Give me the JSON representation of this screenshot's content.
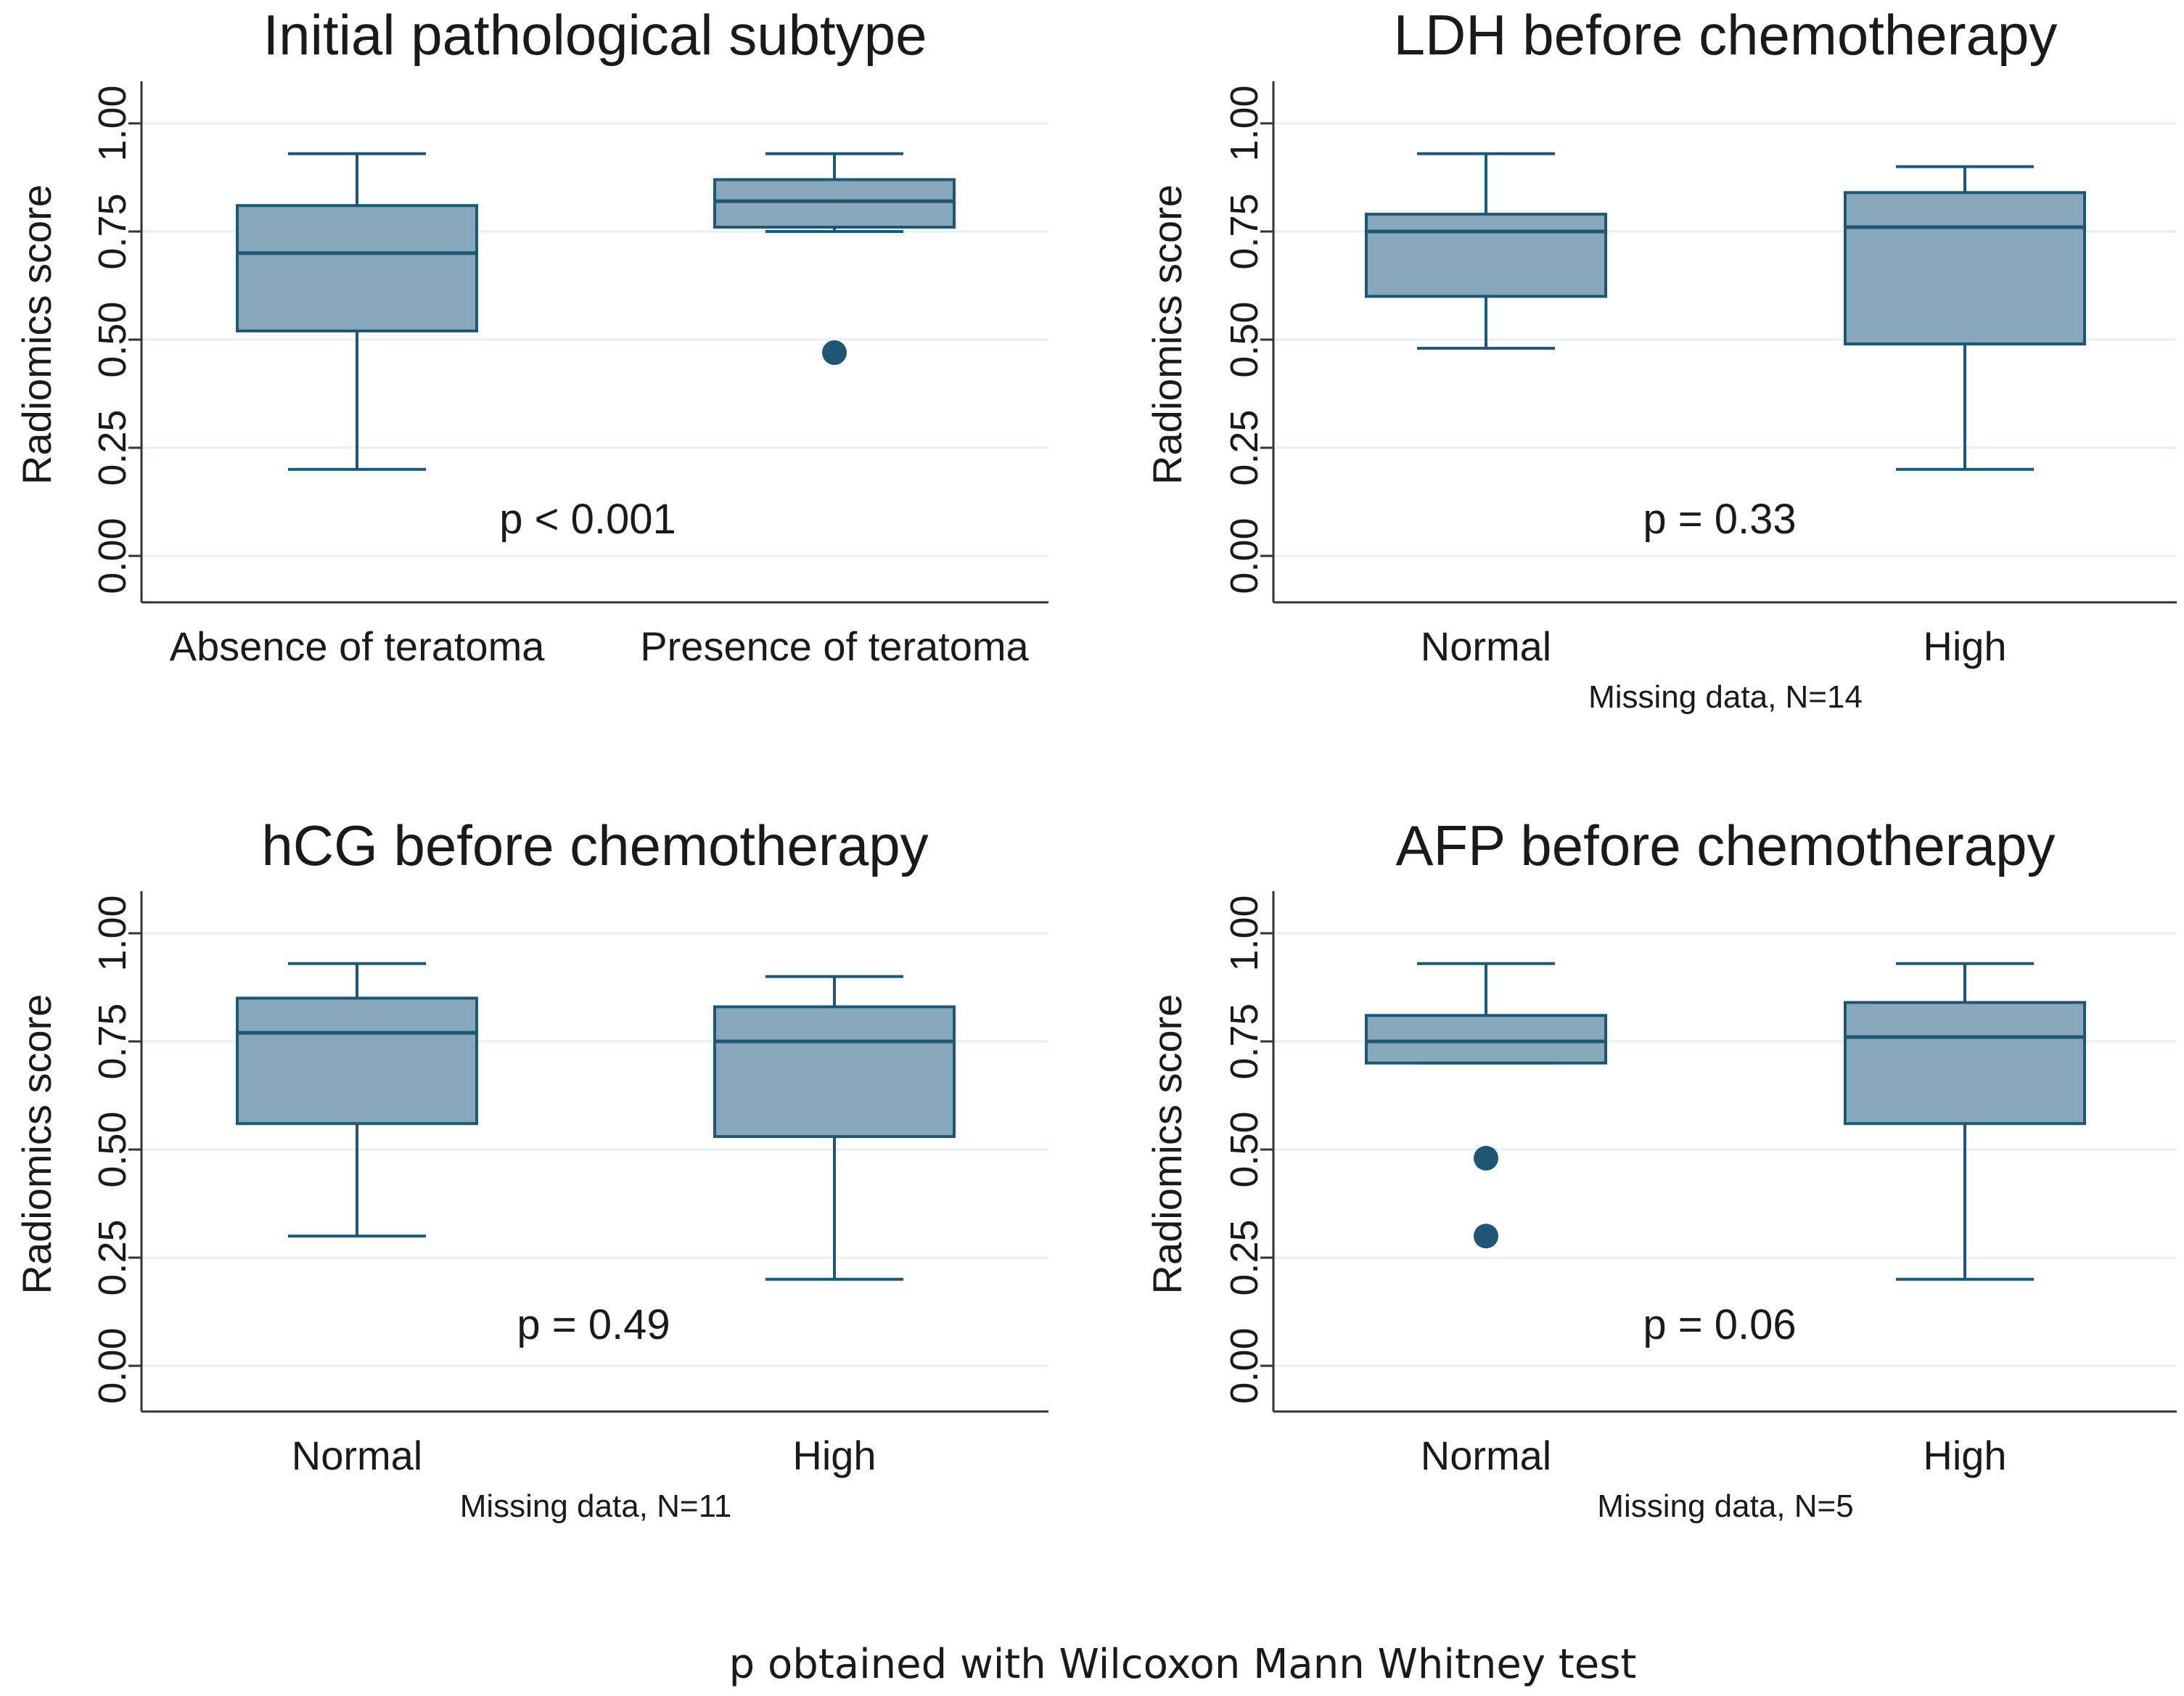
{
  "footer": "p obtained with Wilcoxon Mann Whitney test",
  "colors": {
    "box_fill": "#87A8BB",
    "line": "#1F5673",
    "grid": "#E6EFF2",
    "axis": "#333333"
  },
  "chart_data": [
    {
      "type": "box",
      "title": "Initial pathological subtype",
      "ylabel": "Radiomics score",
      "ylim": [
        0,
        1.05
      ],
      "yticks": [
        "0.00",
        "0.25",
        "0.50",
        "0.75",
        "1.00"
      ],
      "categories": [
        "Absence of teratoma",
        "Presence of teratoma"
      ],
      "boxes": [
        {
          "whisker_low": 0.2,
          "q1": 0.52,
          "median": 0.7,
          "q3": 0.81,
          "whisker_high": 0.93,
          "outliers": []
        },
        {
          "whisker_low": 0.75,
          "q1": 0.76,
          "median": 0.82,
          "q3": 0.87,
          "whisker_high": 0.93,
          "outliers": [
            0.47
          ]
        }
      ],
      "p_text": "p < 0.001",
      "note": ""
    },
    {
      "type": "box",
      "title": "LDH before chemotherapy",
      "ylabel": "Radiomics score",
      "ylim": [
        0,
        1.05
      ],
      "yticks": [
        "0.00",
        "0.25",
        "0.50",
        "0.75",
        "1.00"
      ],
      "categories": [
        "Normal",
        "High"
      ],
      "boxes": [
        {
          "whisker_low": 0.48,
          "q1": 0.6,
          "median": 0.75,
          "q3": 0.79,
          "whisker_high": 0.93,
          "outliers": []
        },
        {
          "whisker_low": 0.2,
          "q1": 0.49,
          "median": 0.76,
          "q3": 0.84,
          "whisker_high": 0.9,
          "outliers": []
        }
      ],
      "p_text": "p = 0.33",
      "note": "Missing data, N=14"
    },
    {
      "type": "box",
      "title": "hCG before chemotherapy",
      "ylabel": "Radiomics score",
      "ylim": [
        0,
        1.05
      ],
      "yticks": [
        "0.00",
        "0.25",
        "0.50",
        "0.75",
        "1.00"
      ],
      "categories": [
        "Normal",
        "High"
      ],
      "boxes": [
        {
          "whisker_low": 0.3,
          "q1": 0.56,
          "median": 0.77,
          "q3": 0.85,
          "whisker_high": 0.93,
          "outliers": []
        },
        {
          "whisker_low": 0.2,
          "q1": 0.53,
          "median": 0.75,
          "q3": 0.83,
          "whisker_high": 0.9,
          "outliers": []
        }
      ],
      "p_text": "p = 0.49",
      "note": "Missing data, N=11"
    },
    {
      "type": "box",
      "title": "AFP before chemotherapy",
      "ylabel": "Radiomics score",
      "ylim": [
        0,
        1.05
      ],
      "yticks": [
        "0.00",
        "0.25",
        "0.50",
        "0.75",
        "1.00"
      ],
      "categories": [
        "Normal",
        "High"
      ],
      "boxes": [
        {
          "whisker_low": 0.7,
          "q1": 0.7,
          "median": 0.75,
          "q3": 0.81,
          "whisker_high": 0.93,
          "outliers": [
            0.48,
            0.3
          ]
        },
        {
          "whisker_low": 0.2,
          "q1": 0.56,
          "median": 0.76,
          "q3": 0.84,
          "whisker_high": 0.93,
          "outliers": []
        }
      ],
      "p_text": "p = 0.06",
      "note": "Missing data, N=5"
    }
  ]
}
